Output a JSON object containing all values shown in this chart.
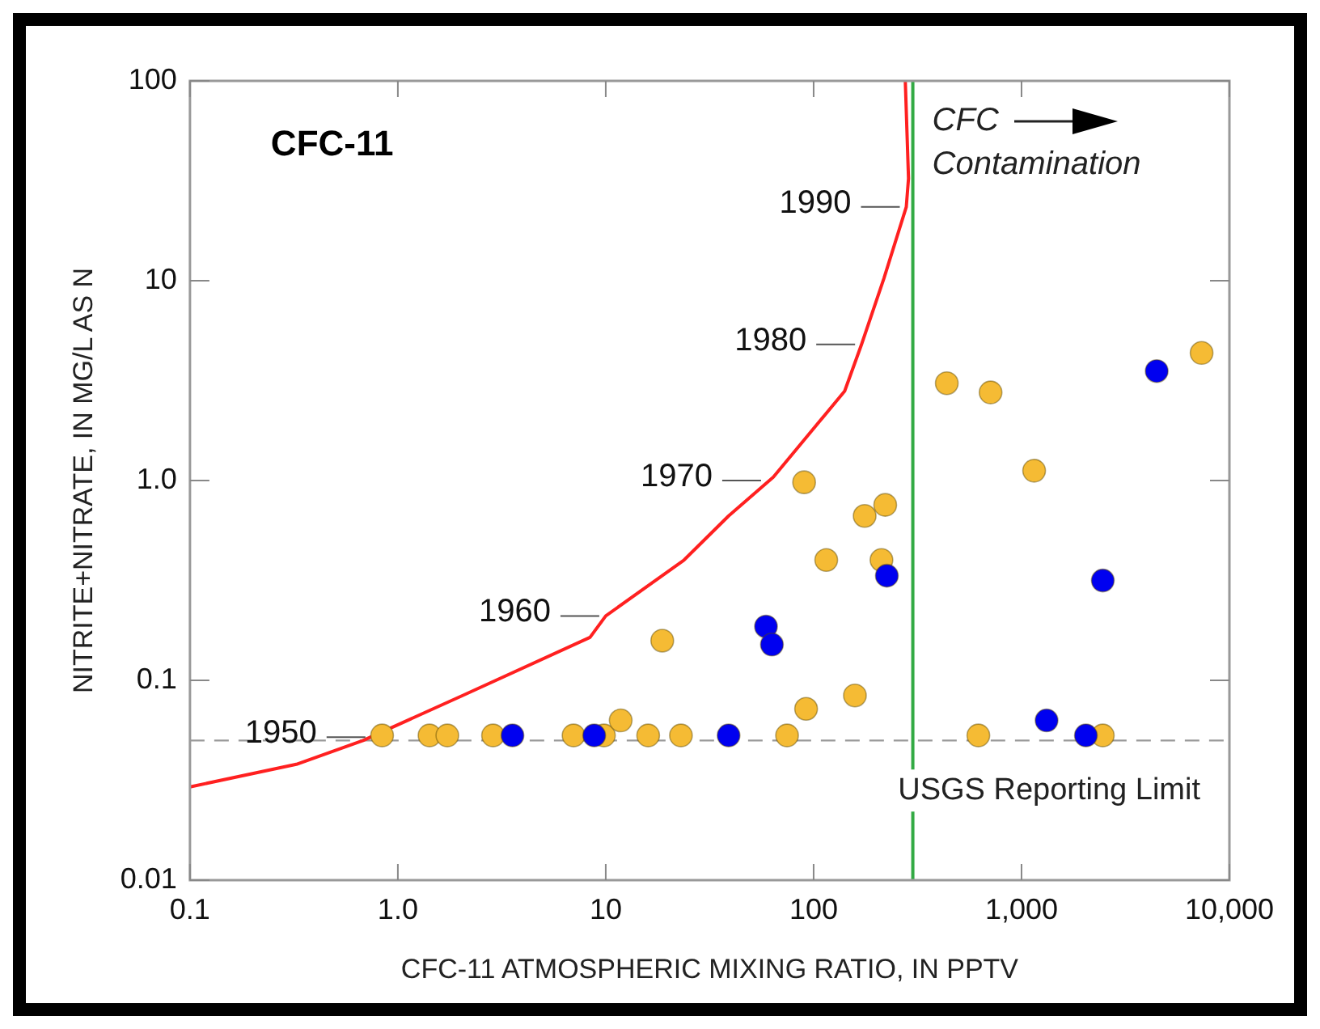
{
  "chart_data": {
    "type": "scatter",
    "title": "CFC-11",
    "xlabel": "CFC-11 ATMOSPHERIC MIXING RATIO, IN PPTV",
    "ylabel": "NITRITE+NITRATE, IN MG/L AS N",
    "log": "xy",
    "grid": false,
    "legend": false,
    "marker": "circle",
    "xlim": [
      0.1,
      10000
    ],
    "ylim": [
      0.01,
      100
    ],
    "xticks": [
      0.1,
      {
        "value": 1,
        "label": "1.0"
      },
      10,
      100,
      {
        "value": 1000,
        "label": "1,000"
      },
      {
        "value": 10000,
        "label": "10,000"
      }
    ],
    "yticks": [
      0.01,
      0.1,
      {
        "value": 1,
        "label": "1.0"
      },
      10,
      100
    ],
    "series": [
      {
        "type": "line",
        "marker": "none",
        "color": "#ff2020",
        "x": [
          0.1,
          0.325,
          0.68,
          2.05,
          8.4,
          10,
          23.8,
          39,
          64,
          141,
          170,
          218,
          279,
          286,
          276
        ],
        "values": [
          0.0293,
          0.038,
          0.05,
          0.084,
          0.164,
          0.21,
          0.4,
          0.665,
          1.04,
          2.8,
          4.8,
          10.3,
          23.4,
          32.5,
          100
        ]
      },
      {
        "color": "#f5bb34",
        "x": [
          0.84,
          1.42,
          1.73,
          2.87,
          7.0,
          9.8,
          16,
          23,
          11.8,
          18.7,
          74.5,
          92,
          158,
          620,
          2460,
          212,
          115,
          176,
          221,
          90,
          1150,
          437,
          710,
          7350
        ],
        "values": [
          0.053,
          0.053,
          0.053,
          0.053,
          0.053,
          0.053,
          0.053,
          0.053,
          0.063,
          0.158,
          0.053,
          0.072,
          0.084,
          0.053,
          0.053,
          0.4,
          0.4,
          0.665,
          0.755,
          0.98,
          1.12,
          3.07,
          2.76,
          4.35
        ]
      },
      {
        "color": "#0000f0",
        "x": [
          3.56,
          8.8,
          39,
          1320,
          2040,
          2460,
          225,
          59,
          63,
          4470
        ],
        "values": [
          0.053,
          0.053,
          0.053,
          0.063,
          0.053,
          0.316,
          0.334,
          0.186,
          0.151,
          3.53
        ]
      }
    ],
    "ref_lines": [
      {
        "axis": "y",
        "value": 0.05,
        "label": "USGS Reporting Limit",
        "color": "#999999",
        "line_style": "dashed"
      },
      {
        "axis": "x",
        "value": 300,
        "label": "CFC Contamination",
        "color": "#33aa44",
        "line_style": "solid"
      }
    ],
    "annotations": [
      {
        "text": "1950",
        "x": 0.75,
        "y": 0.052
      },
      {
        "text": "1960",
        "x": 10,
        "y": 0.21
      },
      {
        "text": "1970",
        "x": 60,
        "y": 1.0
      },
      {
        "text": "1980",
        "x": 170,
        "y": 4.8
      },
      {
        "text": "1990",
        "x": 279,
        "y": 23.4
      }
    ]
  }
}
